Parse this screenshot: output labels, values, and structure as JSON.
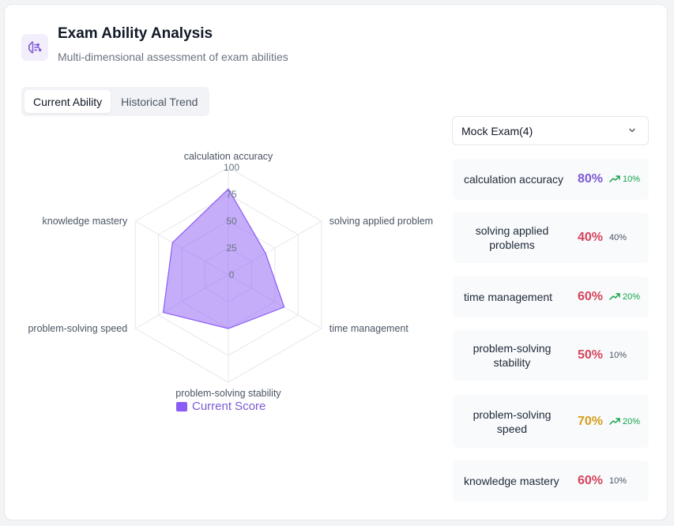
{
  "header": {
    "title": "Exam Ability Analysis",
    "subtitle": "Multi-dimensional assessment of exam abilities"
  },
  "tabs": [
    {
      "label": "Current Ability",
      "active": true
    },
    {
      "label": "Historical Trend",
      "active": false
    }
  ],
  "exam_select": {
    "value": "Mock Exam(4)"
  },
  "chart_data": {
    "type": "radar",
    "categories": [
      "calculation accuracy",
      "solving applied problem",
      "time management",
      "problem-solving stability",
      "problem-solving speed",
      "knowledge mastery"
    ],
    "series": [
      {
        "name": "Current Score",
        "values": [
          80,
          40,
          60,
          50,
          70,
          60
        ]
      }
    ],
    "ticks": [
      "0",
      "25",
      "50",
      "75",
      "100"
    ],
    "range": [
      0,
      100
    ],
    "color": "#8b5cf6"
  },
  "metrics": [
    {
      "name": "calculation accuracy",
      "score": "80%",
      "change": "10%",
      "trend": "up",
      "color": "#7c5ad6"
    },
    {
      "name": "solving applied problems",
      "score": "40%",
      "change": "40%",
      "trend": "flat",
      "color": "#d6455d"
    },
    {
      "name": "time management",
      "score": "60%",
      "change": "20%",
      "trend": "up",
      "color": "#d6455d"
    },
    {
      "name": "problem-solving stability",
      "score": "50%",
      "change": "10%",
      "trend": "flat",
      "color": "#d6455d"
    },
    {
      "name": "problem-solving speed",
      "score": "70%",
      "change": "20%",
      "trend": "up",
      "color": "#d69e1a"
    },
    {
      "name": "knowledge mastery",
      "score": "60%",
      "change": "10%",
      "trend": "flat",
      "color": "#d6455d"
    }
  ]
}
